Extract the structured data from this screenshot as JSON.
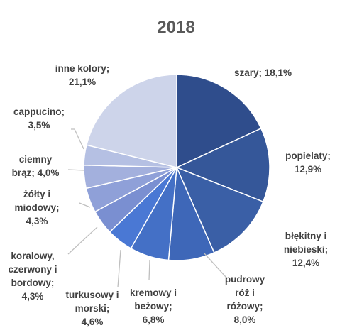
{
  "chart_data": {
    "type": "pie",
    "title": "2018",
    "slices": [
      {
        "name": "szary",
        "value": 18.1,
        "label": "18,1%",
        "color": "#2f4d8c"
      },
      {
        "name": "popielaty",
        "value": 12.9,
        "label": "12,9%",
        "color": "#355799"
      },
      {
        "name": "błękitny i niebieski",
        "value": 12.4,
        "label": "12,4%",
        "color": "#3a5fa6"
      },
      {
        "name": "pudrowy róż i różowy",
        "value": 8.0,
        "label": "8,0%",
        "color": "#3e67b8"
      },
      {
        "name": "kremowy i beżowy",
        "value": 6.8,
        "label": "6,8%",
        "color": "#4470c6"
      },
      {
        "name": "turkusowy i morski",
        "value": 4.6,
        "label": "4,6%",
        "color": "#4a78d4"
      },
      {
        "name": "koralowy, czerwony i bordowy",
        "value": 4.3,
        "label": "4,3%",
        "color": "#7a8fd1"
      },
      {
        "name": "żółty i miodowy",
        "value": 4.3,
        "label": "4,3%",
        "color": "#8fa0d8"
      },
      {
        "name": "ciemny brąz",
        "value": 4.0,
        "label": "4,0%",
        "color": "#a3b0dd"
      },
      {
        "name": "cappucino",
        "value": 3.5,
        "label": "3,5%",
        "color": "#b5c0e3"
      },
      {
        "name": "inne kolory",
        "value": 21.1,
        "label": "21,1%",
        "color": "#cdd4ea"
      }
    ]
  },
  "labels": {
    "szary": [
      "szary; 18,1%"
    ],
    "popielaty": [
      "popielaty;",
      "12,9%"
    ],
    "blekitny": [
      "błękitny i",
      "niebieski;",
      "12,4%"
    ],
    "pudrowy": [
      "pudrowy",
      "róż i",
      "różowy;",
      "8,0%"
    ],
    "kremowy": [
      "kremowy i",
      "beżowy;",
      "6,8%"
    ],
    "turkusowy": [
      "turkusowy i",
      "morski;",
      "4,6%"
    ],
    "koralowy": [
      "koralowy,",
      "czerwony i",
      "bordowy;",
      "4,3%"
    ],
    "zolty": [
      "żółty i",
      "miodowy;",
      "4,3%"
    ],
    "ciemny": [
      "ciemny",
      "brąz; 4,0%"
    ],
    "cappucino": [
      "cappucino;",
      "3,5%"
    ],
    "inne": [
      "inne kolory;",
      "21,1%"
    ]
  }
}
